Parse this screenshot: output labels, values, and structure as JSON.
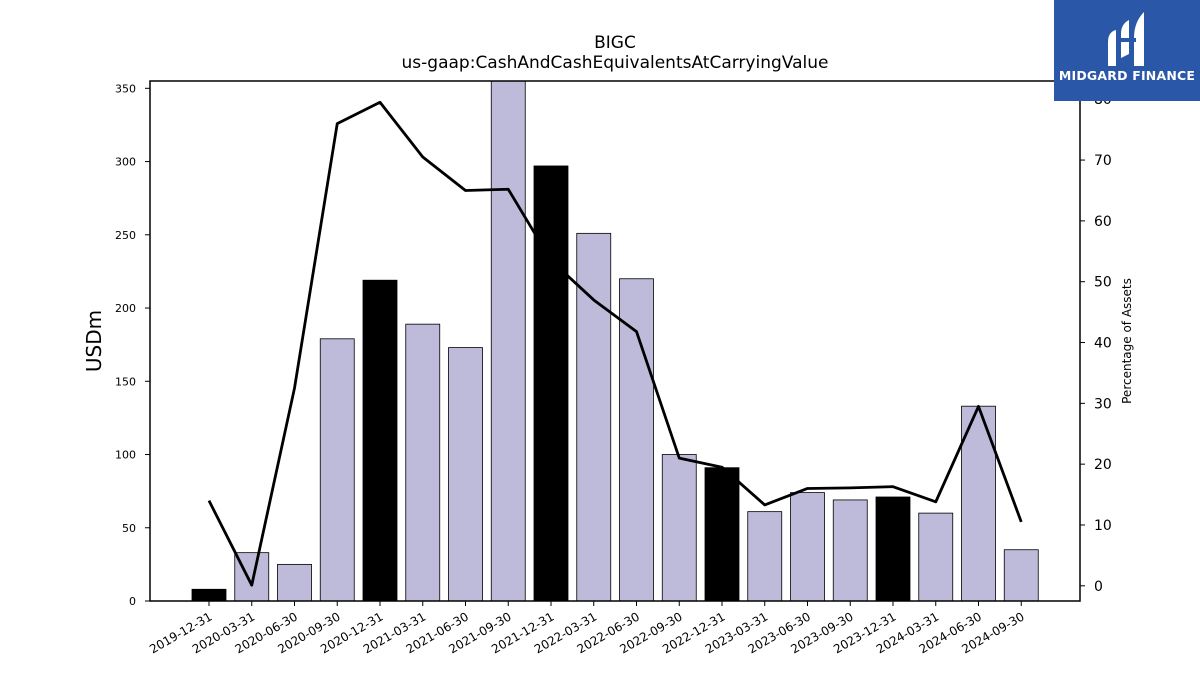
{
  "logo": {
    "text": "MIDGARD FINANCE",
    "icon": "midgard-logo-icon"
  },
  "chart_data": {
    "type": "bar",
    "title": "BIGC",
    "subtitle": "us-gaap:CashAndCashEquivalentsAtCarryingValue",
    "ylabel": "USDm",
    "y2label": "Percentage of Assets",
    "categories": [
      "2019-12-31",
      "2020-03-31",
      "2020-06-30",
      "2020-09-30",
      "2020-12-31",
      "2021-03-31",
      "2021-06-30",
      "2021-09-30",
      "2021-12-31",
      "2022-03-31",
      "2022-06-30",
      "2022-09-30",
      "2022-12-31",
      "2023-03-31",
      "2023-06-30",
      "2023-09-30",
      "2023-12-31",
      "2024-03-31",
      "2024-06-30",
      "2024-09-30"
    ],
    "series": [
      {
        "type": "bar",
        "values": [
          8,
          33,
          25,
          179,
          219,
          189,
          173,
          357,
          297,
          251,
          220,
          100,
          91,
          61,
          74,
          69,
          71,
          60,
          133,
          35
        ],
        "highlight": [
          true,
          false,
          false,
          false,
          true,
          false,
          false,
          false,
          true,
          false,
          false,
          false,
          true,
          false,
          false,
          false,
          true,
          false,
          false,
          false
        ]
      },
      {
        "type": "line",
        "axis": "right",
        "values": [
          14.0,
          0.1,
          32.5,
          76.0,
          79.5,
          70.5,
          65.0,
          65.2,
          53.5,
          47.0,
          41.8,
          21.0,
          19.5,
          13.3,
          16.0,
          16.1,
          16.3,
          13.8,
          29.5,
          10.5
        ]
      }
    ],
    "ylim": [
      0,
      355
    ],
    "y2lim": [
      -2.5,
      83
    ],
    "yticks": [
      0,
      50,
      100,
      150,
      200,
      250,
      300,
      350
    ],
    "y2ticks": [
      0,
      10,
      20,
      30,
      40,
      50,
      60,
      70,
      80
    ],
    "colors": {
      "bar": "#bebada",
      "highlight_bar": "#000000",
      "line": "#000000"
    },
    "grid": false
  }
}
